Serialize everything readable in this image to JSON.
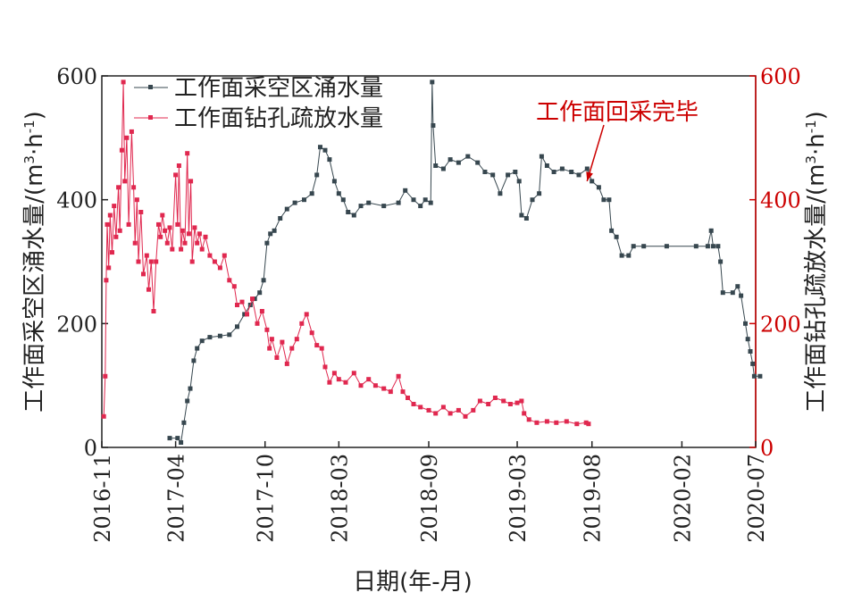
{
  "chart_data": {
    "type": "line",
    "x_axis": {
      "label": "日期(年-月)",
      "ticks": [
        "2016-11",
        "2017-04",
        "2017-10",
        "2018-03",
        "2018-09",
        "2019-03",
        "2019-08",
        "2020-02",
        "2020-07"
      ],
      "range": [
        "2016-11",
        "2020-07"
      ]
    },
    "y_left": {
      "label": "工作面采空区涌水量/(m³·h⁻¹)",
      "label_main": "工作面采空区涌水量/(m",
      "label_sup1": "3",
      "label_mid": "·h",
      "label_sup2": "-1",
      "label_end": ")",
      "ticks": [
        "0",
        "200",
        "400",
        "600"
      ],
      "range": [
        0,
        600
      ]
    },
    "y_right": {
      "label": "工作面钻孔疏放水量/(m³·h⁻¹)",
      "label_main": "工作面钻孔疏放水量/(m",
      "label_sup1": "3",
      "label_mid": "·h",
      "label_sup2": "-1",
      "label_end": ")",
      "ticks": [
        "0",
        "200",
        "400",
        "600"
      ],
      "range": [
        0,
        600
      ],
      "color": "#cc0000"
    },
    "legend_position": "top-left",
    "annotation": {
      "text": "工作面回采完毕",
      "date": "2019-07-22",
      "value": 430,
      "color": "#cc0000"
    },
    "series": [
      {
        "name": "工作面采空区涌水量",
        "axis": "left",
        "color": "#37474f",
        "marker": "square",
        "points": [
          [
            "2017-03-20",
            15
          ],
          [
            "2017-04-05",
            15
          ],
          [
            "2017-04-12",
            8
          ],
          [
            "2017-04-18",
            40
          ],
          [
            "2017-04-25",
            75
          ],
          [
            "2017-05-01",
            95
          ],
          [
            "2017-05-08",
            140
          ],
          [
            "2017-05-15",
            160
          ],
          [
            "2017-05-25",
            172
          ],
          [
            "2017-06-10",
            178
          ],
          [
            "2017-07-01",
            180
          ],
          [
            "2017-07-20",
            182
          ],
          [
            "2017-08-05",
            195
          ],
          [
            "2017-08-20",
            215
          ],
          [
            "2017-09-01",
            230
          ],
          [
            "2017-09-10",
            240
          ],
          [
            "2017-09-20",
            250
          ],
          [
            "2017-09-28",
            270
          ],
          [
            "2017-10-05",
            330
          ],
          [
            "2017-10-12",
            345
          ],
          [
            "2017-10-20",
            350
          ],
          [
            "2017-11-01",
            370
          ],
          [
            "2017-11-15",
            385
          ],
          [
            "2017-12-01",
            395
          ],
          [
            "2017-12-20",
            400
          ],
          [
            "2018-01-05",
            410
          ],
          [
            "2018-01-15",
            440
          ],
          [
            "2018-01-22",
            485
          ],
          [
            "2018-02-01",
            480
          ],
          [
            "2018-02-10",
            465
          ],
          [
            "2018-02-20",
            430
          ],
          [
            "2018-03-01",
            410
          ],
          [
            "2018-03-10",
            400
          ],
          [
            "2018-03-20",
            380
          ],
          [
            "2018-04-01",
            375
          ],
          [
            "2018-04-15",
            390
          ],
          [
            "2018-05-01",
            395
          ],
          [
            "2018-06-01",
            390
          ],
          [
            "2018-07-01",
            395
          ],
          [
            "2018-07-15",
            415
          ],
          [
            "2018-08-01",
            400
          ],
          [
            "2018-08-15",
            390
          ],
          [
            "2018-08-25",
            400
          ],
          [
            "2018-09-05",
            395
          ],
          [
            "2018-09-08",
            590
          ],
          [
            "2018-09-10",
            520
          ],
          [
            "2018-09-15",
            455
          ],
          [
            "2018-10-01",
            450
          ],
          [
            "2018-10-15",
            465
          ],
          [
            "2018-11-01",
            460
          ],
          [
            "2018-11-20",
            470
          ],
          [
            "2018-12-10",
            460
          ],
          [
            "2018-12-25",
            445
          ],
          [
            "2019-01-10",
            440
          ],
          [
            "2019-01-25",
            410
          ],
          [
            "2019-02-10",
            440
          ],
          [
            "2019-02-25",
            445
          ],
          [
            "2019-03-05",
            430
          ],
          [
            "2019-03-10",
            375
          ],
          [
            "2019-03-20",
            370
          ],
          [
            "2019-04-01",
            400
          ],
          [
            "2019-04-15",
            410
          ],
          [
            "2019-04-20",
            470
          ],
          [
            "2019-05-01",
            455
          ],
          [
            "2019-05-15",
            445
          ],
          [
            "2019-06-01",
            450
          ],
          [
            "2019-06-20",
            445
          ],
          [
            "2019-07-05",
            440
          ],
          [
            "2019-07-22",
            450
          ],
          [
            "2019-08-01",
            430
          ],
          [
            "2019-08-15",
            420
          ],
          [
            "2019-08-25",
            400
          ],
          [
            "2019-09-05",
            400
          ],
          [
            "2019-09-10",
            350
          ],
          [
            "2019-09-20",
            340
          ],
          [
            "2019-10-01",
            310
          ],
          [
            "2019-10-15",
            310
          ],
          [
            "2019-10-25",
            325
          ],
          [
            "2019-11-15",
            325
          ],
          [
            "2020-01-01",
            325
          ],
          [
            "2020-03-01",
            325
          ],
          [
            "2020-03-25",
            325
          ],
          [
            "2020-04-01",
            350
          ],
          [
            "2020-04-05",
            325
          ],
          [
            "2020-04-15",
            325
          ],
          [
            "2020-04-20",
            300
          ],
          [
            "2020-04-25",
            250
          ],
          [
            "2020-05-15",
            250
          ],
          [
            "2020-05-25",
            260
          ],
          [
            "2020-06-01",
            245
          ],
          [
            "2020-06-10",
            200
          ],
          [
            "2020-06-15",
            175
          ],
          [
            "2020-06-20",
            155
          ],
          [
            "2020-06-25",
            135
          ],
          [
            "2020-06-28",
            115
          ],
          [
            "2020-07-10",
            115
          ]
        ]
      },
      {
        "name": "工作面钻孔疏放水量",
        "axis": "right",
        "color": "#e0284f",
        "marker": "square",
        "points": [
          [
            "2016-11-05",
            50
          ],
          [
            "2016-11-08",
            115
          ],
          [
            "2016-11-10",
            270
          ],
          [
            "2016-11-12",
            360
          ],
          [
            "2016-11-15",
            290
          ],
          [
            "2016-11-18",
            375
          ],
          [
            "2016-11-22",
            315
          ],
          [
            "2016-11-26",
            390
          ],
          [
            "2016-11-30",
            340
          ],
          [
            "2016-12-05",
            420
          ],
          [
            "2016-12-08",
            350
          ],
          [
            "2016-12-12",
            480
          ],
          [
            "2016-12-15",
            590
          ],
          [
            "2016-12-18",
            430
          ],
          [
            "2016-12-22",
            500
          ],
          [
            "2016-12-26",
            360
          ],
          [
            "2017-01-01",
            510
          ],
          [
            "2017-01-05",
            420
          ],
          [
            "2017-01-08",
            330
          ],
          [
            "2017-01-12",
            400
          ],
          [
            "2017-01-15",
            300
          ],
          [
            "2017-01-20",
            380
          ],
          [
            "2017-01-25",
            280
          ],
          [
            "2017-02-01",
            310
          ],
          [
            "2017-02-05",
            255
          ],
          [
            "2017-02-10",
            300
          ],
          [
            "2017-02-15",
            220
          ],
          [
            "2017-02-20",
            300
          ],
          [
            "2017-02-25",
            360
          ],
          [
            "2017-03-01",
            340
          ],
          [
            "2017-03-05",
            375
          ],
          [
            "2017-03-10",
            350
          ],
          [
            "2017-03-15",
            330
          ],
          [
            "2017-03-20",
            355
          ],
          [
            "2017-03-25",
            320
          ],
          [
            "2017-04-01",
            440
          ],
          [
            "2017-04-05",
            360
          ],
          [
            "2017-04-08",
            455
          ],
          [
            "2017-04-12",
            320
          ],
          [
            "2017-04-15",
            350
          ],
          [
            "2017-04-20",
            330
          ],
          [
            "2017-04-25",
            475
          ],
          [
            "2017-04-28",
            345
          ],
          [
            "2017-05-02",
            430
          ],
          [
            "2017-05-05",
            300
          ],
          [
            "2017-05-10",
            355
          ],
          [
            "2017-05-15",
            330
          ],
          [
            "2017-05-20",
            345
          ],
          [
            "2017-05-25",
            320
          ],
          [
            "2017-06-01",
            340
          ],
          [
            "2017-06-10",
            310
          ],
          [
            "2017-06-20",
            300
          ],
          [
            "2017-07-01",
            290
          ],
          [
            "2017-07-10",
            310
          ],
          [
            "2017-07-20",
            270
          ],
          [
            "2017-07-30",
            260
          ],
          [
            "2017-08-05",
            230
          ],
          [
            "2017-08-15",
            235
          ],
          [
            "2017-08-25",
            215
          ],
          [
            "2017-09-05",
            240
          ],
          [
            "2017-09-15",
            200
          ],
          [
            "2017-09-25",
            220
          ],
          [
            "2017-10-05",
            190
          ],
          [
            "2017-10-10",
            160
          ],
          [
            "2017-10-15",
            175
          ],
          [
            "2017-10-25",
            145
          ],
          [
            "2017-11-05",
            170
          ],
          [
            "2017-11-15",
            135
          ],
          [
            "2017-11-25",
            160
          ],
          [
            "2017-12-05",
            175
          ],
          [
            "2017-12-15",
            200
          ],
          [
            "2017-12-25",
            215
          ],
          [
            "2018-01-05",
            185
          ],
          [
            "2018-01-15",
            165
          ],
          [
            "2018-01-25",
            160
          ],
          [
            "2018-02-01",
            130
          ],
          [
            "2018-02-10",
            105
          ],
          [
            "2018-02-20",
            120
          ],
          [
            "2018-03-01",
            110
          ],
          [
            "2018-03-15",
            105
          ],
          [
            "2018-04-01",
            120
          ],
          [
            "2018-04-15",
            100
          ],
          [
            "2018-05-01",
            110
          ],
          [
            "2018-05-15",
            100
          ],
          [
            "2018-06-01",
            95
          ],
          [
            "2018-06-15",
            90
          ],
          [
            "2018-07-01",
            115
          ],
          [
            "2018-07-10",
            90
          ],
          [
            "2018-07-20",
            80
          ],
          [
            "2018-08-01",
            70
          ],
          [
            "2018-08-15",
            65
          ],
          [
            "2018-09-01",
            60
          ],
          [
            "2018-09-15",
            55
          ],
          [
            "2018-10-01",
            65
          ],
          [
            "2018-10-15",
            55
          ],
          [
            "2018-11-01",
            60
          ],
          [
            "2018-11-15",
            50
          ],
          [
            "2018-12-01",
            60
          ],
          [
            "2018-12-15",
            75
          ],
          [
            "2019-01-01",
            70
          ],
          [
            "2019-01-15",
            80
          ],
          [
            "2019-02-01",
            75
          ],
          [
            "2019-02-15",
            70
          ],
          [
            "2019-03-01",
            72
          ],
          [
            "2019-03-10",
            75
          ],
          [
            "2019-03-15",
            55
          ],
          [
            "2019-03-25",
            45
          ],
          [
            "2019-04-10",
            40
          ],
          [
            "2019-05-01",
            42
          ],
          [
            "2019-05-20",
            40
          ],
          [
            "2019-06-10",
            42
          ],
          [
            "2019-07-01",
            38
          ],
          [
            "2019-07-20",
            40
          ],
          [
            "2019-07-25",
            38
          ]
        ]
      }
    ]
  }
}
